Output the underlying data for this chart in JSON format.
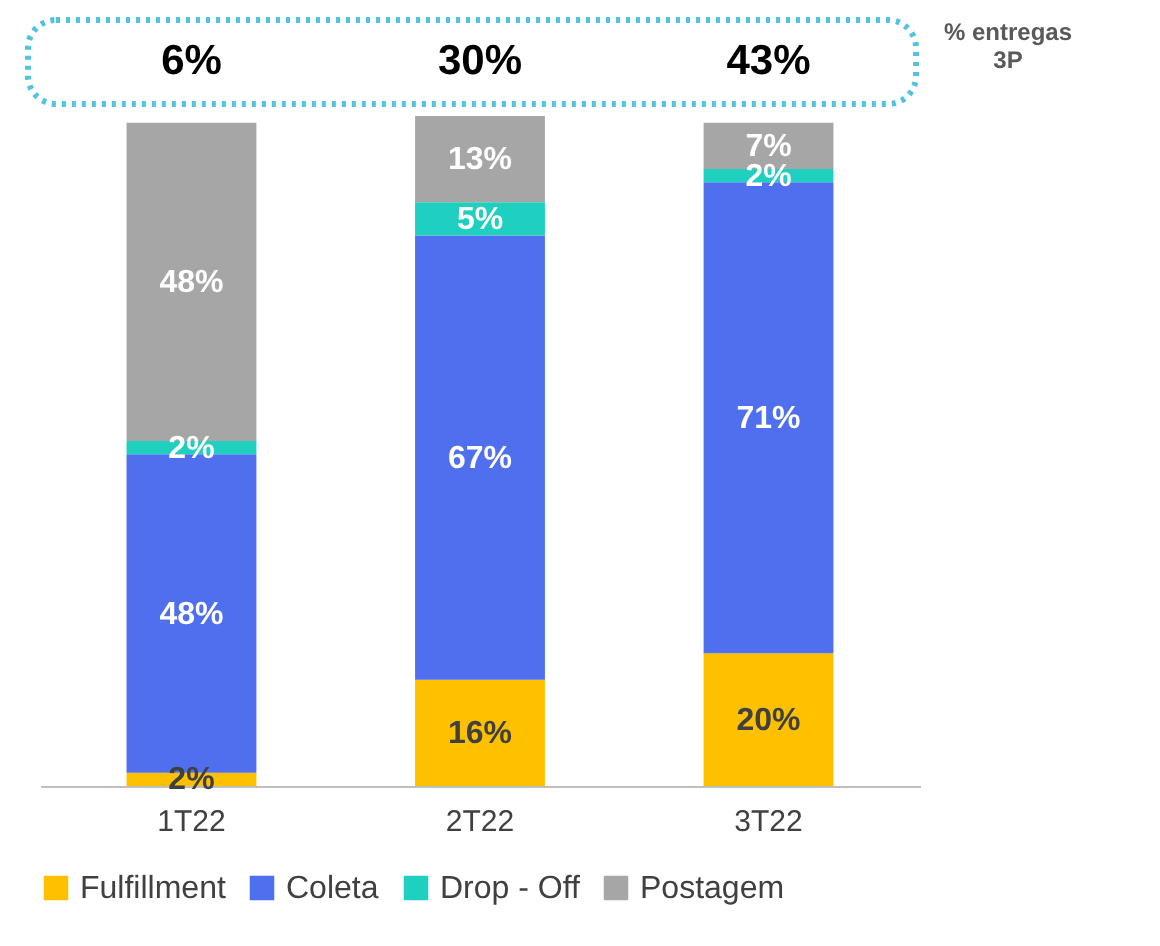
{
  "chart_data": {
    "type": "bar",
    "stacked": true,
    "categories": [
      "1T22",
      "2T22",
      "3T22"
    ],
    "series": [
      {
        "name": "Fulfillment",
        "color": "#ffc000",
        "values": [
          2,
          16,
          20
        ],
        "value_labels": [
          "2%",
          "16%",
          "20%"
        ]
      },
      {
        "name": "Coleta",
        "color": "#4f6fef",
        "values": [
          48,
          67,
          71
        ],
        "value_labels": [
          "48%",
          "67%",
          "71%"
        ]
      },
      {
        "name": "Drop - Off",
        "color": "#1fcfc0",
        "values": [
          2,
          5,
          2
        ],
        "value_labels": [
          "2%",
          "5%",
          "2%"
        ]
      },
      {
        "name": "Postagem",
        "color": "#a6a6a6",
        "values": [
          48,
          13,
          7
        ],
        "value_labels": [
          "48%",
          "13%",
          "7%"
        ]
      }
    ],
    "legend": "bottom",
    "annotations": [
      "6%",
      "30%",
      "43%",
      "% entregas 3P"
    ]
  }
}
